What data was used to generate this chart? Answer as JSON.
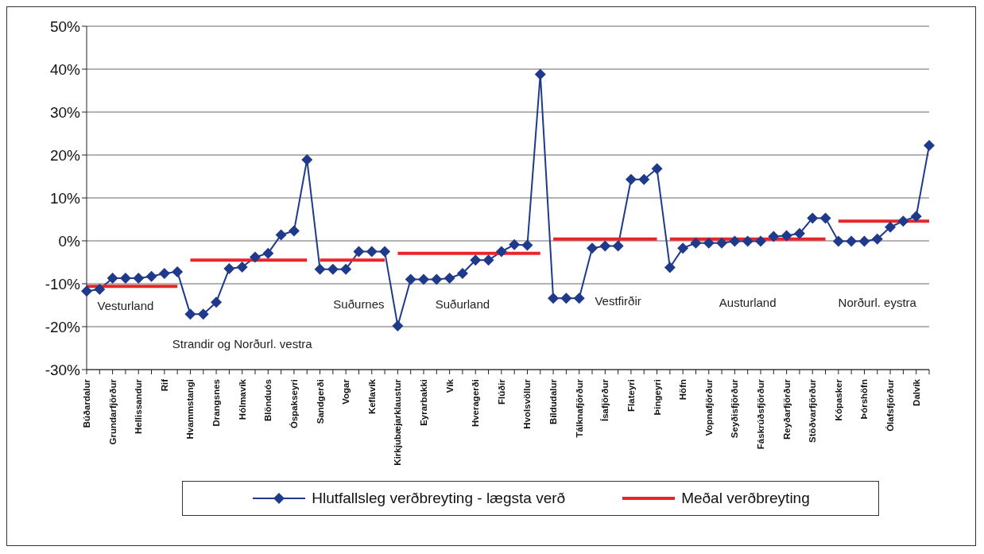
{
  "chart_data": {
    "type": "line",
    "categories": [
      "Búðardalur",
      null,
      "Grundarfjörður",
      null,
      "Hellissandur",
      null,
      "Rif",
      null,
      "Hvammstangi",
      null,
      "Drangsnes",
      null,
      "Hólmavík",
      null,
      "Blönduós",
      null,
      "Óspakseyri",
      null,
      "Sandgerði",
      null,
      "Vogar",
      null,
      "Keflavík",
      null,
      "Kirkjubæjarklaustur",
      null,
      "Eyrarbakki",
      null,
      "Vík",
      null,
      "Hveragerði",
      null,
      "Flúðir",
      null,
      "Hvolsvöllur",
      null,
      "Bíldudalur",
      null,
      "Tálknafjörður",
      null,
      "Ísafjörður",
      null,
      "Flateyri",
      null,
      "Þingeyri",
      null,
      "Höfn",
      null,
      "Vopnafjörður",
      null,
      "Seyðisfjörður",
      null,
      "Fáskrúðsfjörður",
      null,
      "Reyðarfjörður",
      null,
      "Stöðvarfjörður",
      null,
      "Kópasker",
      null,
      "Þórshöfn",
      null,
      "Ólafsfjörður",
      null,
      "Dalvík",
      null
    ],
    "series": [
      {
        "name": "Hlutfallsleg verðbreyting - lægsta verð",
        "color": "#1f3a8a",
        "marker": "diamond",
        "values": [
          -11.7,
          -11.3,
          -8.7,
          -8.7,
          -8.7,
          -8.3,
          -7.6,
          -7.2,
          -17.1,
          -17.1,
          -14.3,
          -6.5,
          -6.1,
          -3.8,
          -2.9,
          1.4,
          2.3,
          18.9,
          -6.6,
          -6.6,
          -6.6,
          -2.5,
          -2.5,
          -2.5,
          -19.8,
          -9.0,
          -9.0,
          -9.0,
          -8.7,
          -7.6,
          -4.5,
          -4.5,
          -2.5,
          -0.9,
          -1.0,
          38.8,
          -13.4,
          -13.4,
          -13.4,
          -1.7,
          -1.2,
          -1.2,
          14.3,
          14.3,
          16.8,
          -6.2,
          -1.7,
          -0.5,
          -0.5,
          -0.5,
          -0.1,
          -0.1,
          -0.1,
          1.0,
          1.2,
          1.7,
          5.3,
          5.3,
          -0.1,
          -0.1,
          -0.1,
          0.4,
          3.2,
          4.6,
          5.7,
          22.2
        ]
      },
      {
        "name": "Meðal verðbreyting",
        "color": "#e8262a",
        "values": [
          -10.6,
          -10.6,
          -10.6,
          -10.6,
          -10.6,
          -10.6,
          -10.6,
          -10.6,
          null,
          null,
          null,
          null,
          null,
          null,
          null,
          null,
          null,
          null,
          null,
          null,
          null,
          null,
          null,
          null,
          null,
          null,
          null,
          null,
          null,
          null,
          null,
          null,
          null,
          null,
          null,
          null,
          null,
          null,
          null,
          null,
          null,
          null,
          null,
          null,
          null,
          null,
          null,
          null,
          null,
          null,
          null,
          null,
          null,
          null,
          null,
          null,
          null,
          null,
          null,
          null,
          null,
          null,
          null,
          null,
          null,
          null
        ]
      },
      {
        "color": "#e8262a",
        "values": [
          null,
          null,
          null,
          null,
          null,
          null,
          null,
          null,
          -4.5,
          -4.5,
          -4.5,
          -4.5,
          -4.5,
          -4.5,
          -4.5,
          -4.5,
          -4.5,
          -4.5,
          null,
          null,
          null,
          null,
          null,
          null,
          null,
          null,
          null,
          null,
          null,
          null,
          null,
          null,
          null,
          null,
          null,
          null,
          null,
          null,
          null,
          null,
          null,
          null,
          null,
          null,
          null,
          null,
          null,
          null,
          null,
          null,
          null,
          null,
          null,
          null,
          null,
          null,
          null,
          null,
          null,
          null,
          null,
          null,
          null,
          null,
          null,
          null
        ]
      },
      {
        "color": "#e8262a",
        "values": [
          null,
          null,
          null,
          null,
          null,
          null,
          null,
          null,
          null,
          null,
          null,
          null,
          null,
          null,
          null,
          null,
          null,
          null,
          -4.5,
          -4.5,
          -4.5,
          -4.5,
          -4.5,
          -4.5,
          null,
          null,
          null,
          null,
          null,
          null,
          null,
          null,
          null,
          null,
          null,
          null,
          null,
          null,
          null,
          null,
          null,
          null,
          null,
          null,
          null,
          null,
          null,
          null,
          null,
          null,
          null,
          null,
          null,
          null,
          null,
          null,
          null,
          null,
          null,
          null,
          null,
          null,
          null,
          null,
          null,
          null
        ]
      },
      {
        "color": "#e8262a",
        "values": [
          null,
          null,
          null,
          null,
          null,
          null,
          null,
          null,
          null,
          null,
          null,
          null,
          null,
          null,
          null,
          null,
          null,
          null,
          null,
          null,
          null,
          null,
          null,
          null,
          -2.9,
          -2.9,
          -2.9,
          -2.9,
          -2.9,
          -2.9,
          -2.9,
          -2.9,
          -2.9,
          -2.9,
          -2.9,
          -2.9,
          null,
          null,
          null,
          null,
          null,
          null,
          null,
          null,
          null,
          null,
          null,
          null,
          null,
          null,
          null,
          null,
          null,
          null,
          null,
          null,
          null,
          null,
          null,
          null,
          null,
          null,
          null,
          null,
          null,
          null
        ]
      },
      {
        "color": "#e8262a",
        "values": [
          null,
          null,
          null,
          null,
          null,
          null,
          null,
          null,
          null,
          null,
          null,
          null,
          null,
          null,
          null,
          null,
          null,
          null,
          null,
          null,
          null,
          null,
          null,
          null,
          null,
          null,
          null,
          null,
          null,
          null,
          null,
          null,
          null,
          null,
          null,
          null,
          0.4,
          0.4,
          0.4,
          0.4,
          0.4,
          0.4,
          0.4,
          0.4,
          0.4,
          null,
          null,
          null,
          null,
          null,
          null,
          null,
          null,
          null,
          null,
          null,
          null,
          null,
          null,
          null,
          null,
          null,
          null,
          null,
          null,
          null
        ]
      },
      {
        "color": "#e8262a",
        "values": [
          null,
          null,
          null,
          null,
          null,
          null,
          null,
          null,
          null,
          null,
          null,
          null,
          null,
          null,
          null,
          null,
          null,
          null,
          null,
          null,
          null,
          null,
          null,
          null,
          null,
          null,
          null,
          null,
          null,
          null,
          null,
          null,
          null,
          null,
          null,
          null,
          null,
          null,
          null,
          null,
          null,
          null,
          null,
          null,
          null,
          0.4,
          0.4,
          0.4,
          0.4,
          0.4,
          0.4,
          0.4,
          0.4,
          0.4,
          0.4,
          0.4,
          0.4,
          0.4,
          null,
          null,
          null,
          null,
          null,
          null,
          null,
          null
        ]
      },
      {
        "color": "#e8262a",
        "values": [
          null,
          null,
          null,
          null,
          null,
          null,
          null,
          null,
          null,
          null,
          null,
          null,
          null,
          null,
          null,
          null,
          null,
          null,
          null,
          null,
          null,
          null,
          null,
          null,
          null,
          null,
          null,
          null,
          null,
          null,
          null,
          null,
          null,
          null,
          null,
          null,
          null,
          null,
          null,
          null,
          null,
          null,
          null,
          null,
          null,
          null,
          null,
          null,
          null,
          null,
          null,
          null,
          null,
          null,
          null,
          null,
          null,
          null,
          4.6,
          4.6,
          4.6,
          4.6,
          4.6,
          4.6,
          4.6,
          4.6
        ]
      }
    ],
    "ylim": [
      -30,
      50
    ],
    "yticks": [
      {
        "value": -30,
        "label": "-30%"
      },
      {
        "value": -20,
        "label": "-20%"
      },
      {
        "value": -10,
        "label": "-10%"
      },
      {
        "value": 0,
        "label": "0%"
      },
      {
        "value": 10,
        "label": "10%"
      },
      {
        "value": 20,
        "label": "20%"
      },
      {
        "value": 30,
        "label": "30%"
      },
      {
        "value": 40,
        "label": "40%"
      },
      {
        "value": 50,
        "label": "50%"
      }
    ],
    "grid": "y",
    "legend": "bottom",
    "annotations": [
      "Vesturland",
      "Strandir og Norðurl. vestra",
      "Suðurnes",
      "Suðurland",
      "Vestfirðir",
      "Austurland",
      "Norðurl. eystra"
    ]
  }
}
